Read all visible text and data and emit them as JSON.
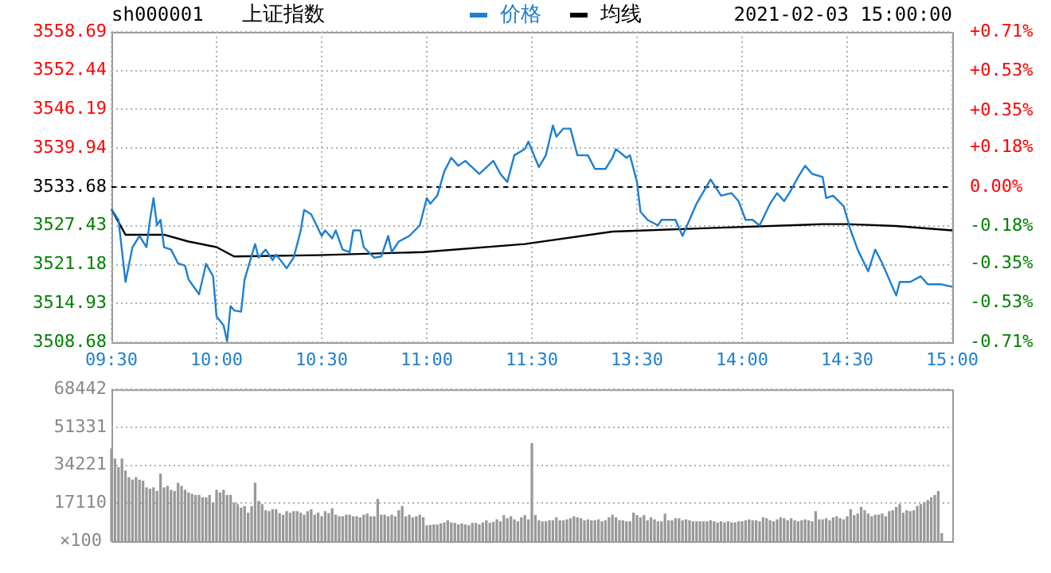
{
  "chart_data": [
    {
      "type": "line",
      "title": "上证指数",
      "subtitle": "sh000001",
      "annotations": [
        "2021-02-03 15:00:00"
      ],
      "legend": "top",
      "grid": true,
      "marker": "none",
      "line_style": "solid",
      "categories": [
        "09:30",
        null,
        null,
        null,
        null,
        null,
        null,
        null,
        null,
        null,
        null,
        null,
        null,
        null,
        null,
        null,
        null,
        null,
        null,
        null,
        null,
        null,
        null,
        null,
        null,
        null,
        null,
        null,
        null,
        null,
        "10:00",
        null,
        null,
        null,
        null,
        null,
        null,
        null,
        null,
        null,
        null,
        null,
        null,
        null,
        null,
        null,
        null,
        null,
        null,
        null,
        null,
        null,
        null,
        null,
        null,
        null,
        null,
        null,
        null,
        null,
        "10:30",
        null,
        null,
        null,
        null,
        null,
        null,
        null,
        null,
        null,
        null,
        null,
        null,
        null,
        null,
        null,
        null,
        null,
        null,
        null,
        null,
        null,
        null,
        null,
        null,
        null,
        null,
        null,
        null,
        null,
        "11:00",
        null,
        null,
        null,
        null,
        null,
        null,
        null,
        null,
        null,
        null,
        null,
        null,
        null,
        null,
        null,
        null,
        null,
        null,
        null,
        null,
        null,
        null,
        null,
        null,
        null,
        null,
        null,
        null,
        null,
        "11:30",
        null,
        null,
        null,
        null,
        null,
        null,
        null,
        null,
        null,
        null,
        null,
        null,
        null,
        null,
        null,
        null,
        null,
        null,
        null,
        null,
        null,
        null,
        null,
        null,
        null,
        null,
        null,
        null,
        null,
        "13:30",
        null,
        null,
        null,
        null,
        null,
        null,
        null,
        null,
        null,
        null,
        null,
        null,
        null,
        null,
        null,
        null,
        null,
        null,
        null,
        null,
        null,
        null,
        null,
        null,
        null,
        null,
        null,
        null,
        null,
        "14:00",
        null,
        null,
        null,
        null,
        null,
        null,
        null,
        null,
        null,
        null,
        null,
        null,
        null,
        null,
        null,
        null,
        null,
        null,
        null,
        null,
        null,
        null,
        null,
        null,
        null,
        null,
        null,
        null,
        null,
        "14:30",
        null,
        null,
        null,
        null,
        null,
        null,
        null,
        null,
        null,
        null,
        null,
        null,
        null,
        null,
        null,
        null,
        null,
        null,
        null,
        null,
        null,
        null,
        null,
        null,
        null,
        null,
        null,
        null,
        null,
        "15:00"
      ],
      "ylim": [
        3508.68,
        3558.69
      ],
      "yticks": [
        3508.68,
        3514.93,
        3521.18,
        3527.43,
        3533.68,
        3539.94,
        3546.19,
        3552.44,
        3558.69
      ],
      "y2lim": [
        -0.71,
        0.71
      ],
      "y2ticks": [
        {
          "value": -0.71,
          "label": "-0.71%"
        },
        {
          "value": -0.53,
          "label": "-0.53%"
        },
        {
          "value": -0.35,
          "label": "-0.35%"
        },
        {
          "value": -0.18,
          "label": "-0.18%"
        },
        {
          "value": 0,
          "label": "0.00%"
        },
        {
          "value": 0.18,
          "label": "+0.18%"
        },
        {
          "value": 0.35,
          "label": "+0.35%"
        },
        {
          "value": 0.53,
          "label": "+0.53%"
        },
        {
          "value": 0.71,
          "label": "+0.71%"
        }
      ],
      "ref_lines": [
        {
          "axis": "y",
          "value": 3533.68,
          "color": "#000000",
          "line_style": "dashed"
        }
      ],
      "series": [
        {
          "name": "价格",
          "color": "#1e7fd0",
          "values": [
            3530.1,
            null,
            3528.4,
            null,
            3518.4,
            null,
            3524.0,
            null,
            3525.8,
            null,
            3524.0,
            3528.4,
            3531.9,
            3527.5,
            3528.4,
            3524.0,
            null,
            3523.6,
            null,
            3521.4,
            null,
            3521.0,
            3518.8,
            null,
            null,
            3516.4,
            null,
            3521.3,
            null,
            3519.3,
            3512.8,
            null,
            3511.4,
            3508.8,
            3514.5,
            3513.8,
            null,
            3513.6,
            3518.8,
            null,
            null,
            3524.5,
            3522.3,
            null,
            3523.6,
            null,
            3521.9,
            3522.8,
            null,
            null,
            3520.6,
            null,
            3522.3,
            null,
            3526.6,
            3530.0,
            null,
            3529.3,
            null,
            null,
            3525.8,
            3526.7,
            null,
            3525.4,
            3526.7,
            null,
            3523.6,
            null,
            3523.2,
            3526.7,
            null,
            3526.7,
            3524.0,
            null,
            null,
            3522.3,
            null,
            3522.5,
            null,
            3525.8,
            3523.2,
            null,
            3524.9,
            null,
            null,
            3525.8,
            null,
            null,
            3527.5,
            null,
            3531.9,
            3531.0,
            null,
            3532.3,
            null,
            3536.2,
            null,
            3538.4,
            null,
            3537.1,
            null,
            3537.9,
            null,
            null,
            null,
            3535.8,
            null,
            null,
            null,
            3537.9,
            null,
            3535.8,
            null,
            3534.5,
            null,
            3538.8,
            null,
            null,
            3539.8,
            3541.0,
            null,
            null,
            3536.9,
            null,
            3538.8,
            null,
            3543.6,
            3541.8,
            null,
            3543.1,
            null,
            3543.1,
            null,
            3538.8,
            null,
            null,
            3538.8,
            null,
            3536.6,
            null,
            null,
            3536.6,
            null,
            3538.4,
            3539.8,
            null,
            null,
            3538.4,
            3538.8,
            null,
            3534.5,
            3529.7,
            null,
            3528.4,
            null,
            null,
            3527.5,
            3528.4,
            null,
            null,
            null,
            3528.4,
            null,
            3525.8,
            null,
            3528.4,
            null,
            3531.0,
            null,
            null,
            null,
            3534.9,
            null,
            null,
            3532.3,
            null,
            null,
            3532.7,
            null,
            3531.4,
            null,
            3528.4,
            null,
            3528.4,
            null,
            3527.5,
            null,
            null,
            3531.0,
            null,
            3532.7,
            null,
            3531.4,
            null,
            3533.2,
            null,
            3535.3,
            null,
            3537.1,
            null,
            3535.8,
            null,
            null,
            3535.3,
            3531.9,
            null,
            3532.3,
            null,
            null,
            3530.6,
            null,
            3526.7,
            null,
            3523.6,
            null,
            null,
            3520.1,
            null,
            3523.6,
            null,
            3521.4,
            null,
            null,
            null,
            3516.2,
            3518.4,
            null,
            null,
            3518.4,
            null,
            null,
            3519.3,
            null,
            3518.0,
            null,
            null,
            null,
            3518.0,
            null,
            null,
            3517.6
          ]
        },
        {
          "name": "均线",
          "color": "#000000",
          "values": [
            3530.1,
            null,
            null,
            null,
            3526.0,
            null,
            null,
            null,
            null,
            null,
            null,
            null,
            null,
            null,
            null,
            3526.0,
            null,
            null,
            null,
            null,
            null,
            null,
            3524.9,
            null,
            null,
            null,
            null,
            null,
            null,
            null,
            3524.0,
            null,
            null,
            null,
            null,
            3522.5,
            null,
            null,
            null,
            null,
            null,
            null,
            null,
            null,
            null,
            null,
            null,
            null,
            null,
            null,
            null,
            null,
            null,
            null,
            null,
            null,
            null,
            null,
            null,
            3522.7,
            null,
            null,
            null,
            null,
            null,
            null,
            null,
            null,
            null,
            null,
            null,
            null,
            null,
            null,
            null,
            null,
            null,
            null,
            null,
            null,
            null,
            null,
            null,
            null,
            null,
            null,
            null,
            null,
            null,
            3523.2,
            null,
            null,
            null,
            null,
            null,
            null,
            null,
            null,
            null,
            null,
            null,
            null,
            null,
            null,
            null,
            null,
            null,
            null,
            null,
            null,
            null,
            null,
            null,
            null,
            null,
            null,
            null,
            null,
            3524.5,
            null,
            null,
            null,
            null,
            null,
            null,
            null,
            null,
            null,
            null,
            null,
            null,
            null,
            null,
            null,
            null,
            null,
            null,
            null,
            null,
            null,
            null,
            null,
            null,
            3526.5,
            null,
            null,
            null,
            null,
            null,
            null,
            null,
            null,
            null,
            null,
            null,
            null,
            null,
            null,
            null,
            null,
            null,
            null,
            null,
            null,
            null,
            null,
            null,
            null,
            null,
            null,
            null,
            null,
            3527.1,
            null,
            null,
            null,
            null,
            null,
            null,
            null,
            null,
            null,
            null,
            null,
            null,
            null,
            null,
            null,
            null,
            null,
            null,
            null,
            null,
            null,
            null,
            null,
            null,
            null,
            null,
            null,
            null,
            null,
            null,
            3527.7,
            null,
            null,
            null,
            null,
            null,
            null,
            3527.7,
            null,
            null,
            null,
            null,
            null,
            null,
            null,
            null,
            null,
            null,
            null,
            null,
            null,
            3527.4,
            null,
            null,
            null,
            null,
            null,
            null,
            null,
            null,
            null,
            null,
            null,
            null,
            null,
            null,
            null,
            3526.7
          ]
        }
      ]
    },
    {
      "type": "bar",
      "color": "#999999",
      "grid": "y",
      "legend": false,
      "ylabel": "×100",
      "categories": [
        null,
        null,
        null,
        null,
        null,
        null,
        null,
        null,
        null,
        null,
        null,
        null,
        null,
        null,
        null,
        null,
        null,
        null,
        null,
        null,
        null,
        null,
        null,
        null,
        null,
        null,
        null,
        null,
        null,
        null,
        null,
        null,
        null,
        null,
        null,
        null,
        null,
        null,
        null,
        null,
        null,
        null,
        null,
        null,
        null,
        null,
        null,
        null,
        null,
        null,
        null,
        null,
        null,
        null,
        null,
        null,
        null,
        null,
        null,
        null,
        null,
        null,
        null,
        null,
        null,
        null,
        null,
        null,
        null,
        null,
        null,
        null,
        null,
        null,
        null,
        null,
        null,
        null,
        null,
        null,
        null,
        null,
        null,
        null,
        null,
        null,
        null,
        null,
        null,
        null,
        null,
        null,
        null,
        null,
        null,
        null,
        null,
        null,
        null,
        null,
        null,
        null,
        null,
        null,
        null,
        null,
        null,
        null,
        null,
        null,
        null,
        null,
        null,
        null,
        null,
        null,
        null,
        null,
        null,
        null,
        null,
        null,
        null,
        null,
        null,
        null,
        null,
        null,
        null,
        null,
        null,
        null,
        null,
        null,
        null,
        null,
        null,
        null,
        null,
        null,
        null,
        null,
        null,
        null,
        null,
        null,
        null,
        null,
        null,
        null,
        null,
        null,
        null,
        null,
        null,
        null,
        null,
        null,
        null,
        null,
        null,
        null,
        null,
        null,
        null,
        null,
        null,
        null,
        null,
        null,
        null,
        null,
        null,
        null,
        null,
        null,
        null,
        null,
        null,
        null,
        null,
        null,
        null,
        null,
        null,
        null,
        null,
        null,
        null,
        null,
        null,
        null,
        null,
        null,
        null,
        null,
        null,
        null,
        null,
        null,
        null,
        null,
        null,
        null,
        null,
        null,
        null,
        null,
        null,
        null,
        null,
        null,
        null,
        null,
        null,
        null,
        null,
        null,
        null,
        null,
        null,
        null,
        null,
        null,
        null,
        null,
        null,
        null,
        null,
        null,
        null,
        null,
        null,
        null,
        null,
        null,
        null,
        null,
        null,
        null,
        null
      ],
      "ylim": [
        0,
        68442
      ],
      "yticks": [
        17110,
        34221,
        51331,
        68442
      ],
      "values": [
        41600,
        37000,
        33100,
        37000,
        31600,
        28600,
        27500,
        28600,
        27500,
        27000,
        24000,
        23400,
        24000,
        22400,
        30200,
        24000,
        24700,
        22900,
        22400,
        26100,
        24700,
        22900,
        21700,
        21100,
        20600,
        20600,
        19500,
        19500,
        20600,
        17200,
        22900,
        21700,
        22900,
        20600,
        20600,
        17200,
        16500,
        14900,
        15600,
        12600,
        15600,
        26100,
        17900,
        16500,
        13700,
        13300,
        14200,
        14200,
        12400,
        11700,
        13300,
        12600,
        13300,
        13300,
        12600,
        11700,
        13300,
        14200,
        11700,
        12600,
        11000,
        13300,
        12400,
        14600,
        11700,
        11000,
        11000,
        11700,
        11700,
        11000,
        11000,
        10500,
        11700,
        12200,
        11000,
        11000,
        18800,
        11700,
        11700,
        11000,
        11700,
        11000,
        13700,
        15600,
        11000,
        11700,
        10500,
        11000,
        11700,
        10500,
        6900,
        7100,
        7300,
        7300,
        7800,
        8200,
        9200,
        8200,
        8000,
        7300,
        7800,
        7300,
        6900,
        8000,
        8000,
        7300,
        8200,
        9200,
        8000,
        8500,
        9600,
        8700,
        11500,
        10100,
        11000,
        9600,
        8700,
        10500,
        11500,
        9600,
        44000,
        11500,
        9200,
        8700,
        8700,
        9200,
        9200,
        10500,
        9200,
        9200,
        9600,
        10100,
        11000,
        10500,
        10100,
        9200,
        9600,
        9200,
        9200,
        9600,
        8700,
        9200,
        10500,
        11700,
        10500,
        9200,
        9200,
        8700,
        8700,
        12600,
        11500,
        10500,
        11500,
        9200,
        10500,
        9600,
        8700,
        8700,
        12200,
        9200,
        9200,
        10100,
        10100,
        9200,
        9600,
        9200,
        8700,
        8700,
        8700,
        8700,
        8700,
        9200,
        8700,
        8200,
        8700,
        8200,
        8700,
        8200,
        8200,
        8700,
        8700,
        9200,
        9600,
        9200,
        9200,
        8700,
        10500,
        10100,
        9200,
        8700,
        9600,
        10500,
        10100,
        9200,
        10100,
        9200,
        8700,
        9200,
        9600,
        9200,
        8700,
        13300,
        9600,
        9600,
        10100,
        9200,
        10500,
        11000,
        10100,
        9600,
        11000,
        14200,
        11500,
        12200,
        15200,
        13700,
        12200,
        11000,
        11700,
        11700,
        12200,
        11000,
        13300,
        13700,
        15200,
        16500,
        12600,
        13700,
        13300,
        13700,
        15600,
        16500,
        17400,
        18300,
        19500,
        20600,
        22400,
        3400,
        null,
        null,
        null
      ]
    }
  ]
}
